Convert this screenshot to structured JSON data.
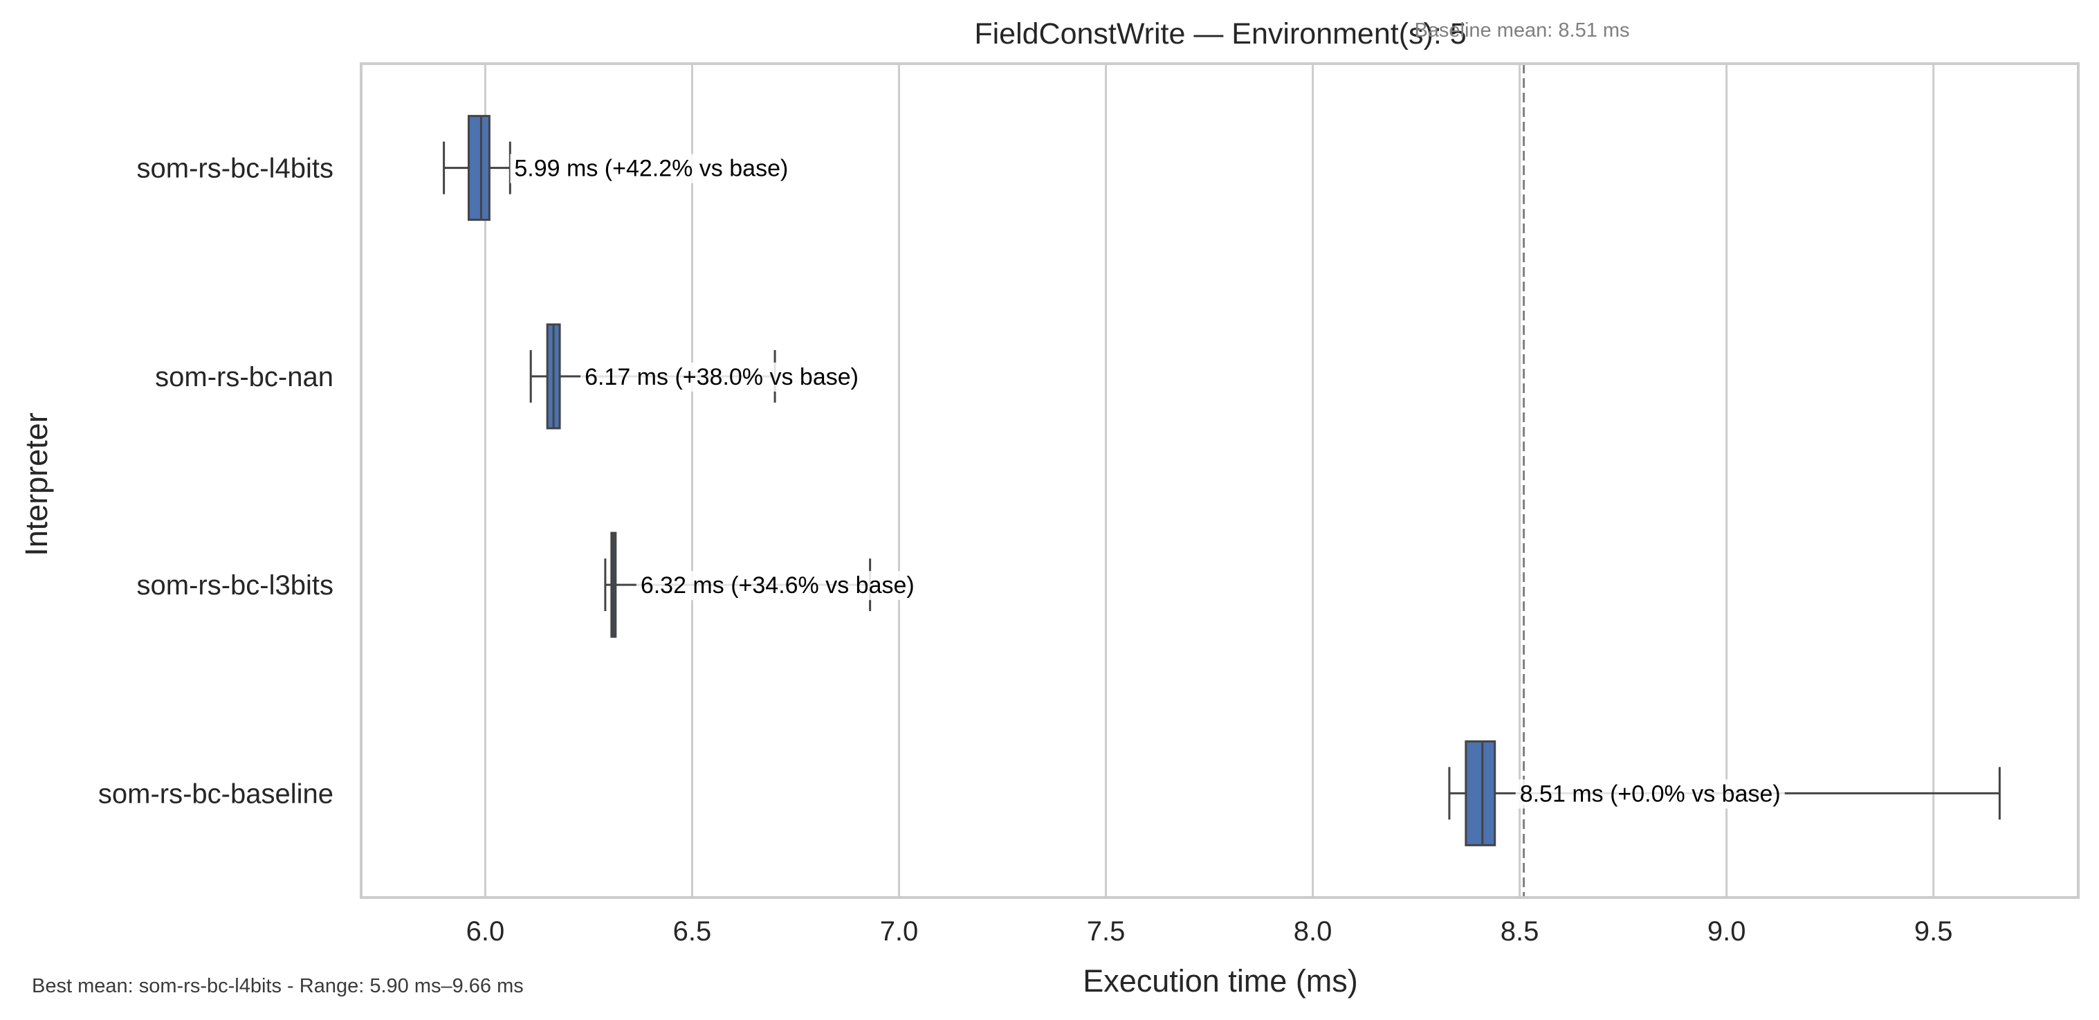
{
  "chart_data": {
    "type": "box",
    "orientation": "horizontal",
    "title": "FieldConstWrite — Environment(s): 5",
    "xlabel": "Execution time (ms)",
    "ylabel": "Interpreter",
    "xlim": [
      5.7,
      9.85
    ],
    "xticks": [
      6.0,
      6.5,
      7.0,
      7.5,
      8.0,
      8.5,
      9.0,
      9.5
    ],
    "xtick_labels": [
      "6.0",
      "6.5",
      "7.0",
      "7.5",
      "8.0",
      "8.5",
      "9.0",
      "9.5"
    ],
    "grid": "vertical",
    "categories": [
      "som-rs-bc-l4bits",
      "som-rs-bc-nan",
      "som-rs-bc-l3bits",
      "som-rs-bc-baseline"
    ],
    "boxes": [
      {
        "category": "som-rs-bc-l4bits",
        "whisker_low": 5.9,
        "q1": 5.96,
        "median": 5.99,
        "q3": 6.01,
        "whisker_high": 6.06,
        "color": "#4c72b0",
        "annotation": "5.99 ms  (+42.2% vs base)"
      },
      {
        "category": "som-rs-bc-nan",
        "whisker_low": 6.11,
        "q1": 6.15,
        "median": 6.165,
        "q3": 6.18,
        "whisker_high": 6.7,
        "color": "#4c72b0",
        "annotation": "6.17 ms  (+38.0% vs base)"
      },
      {
        "category": "som-rs-bc-l3bits",
        "whisker_low": 6.29,
        "q1": 6.305,
        "median": 6.31,
        "q3": 6.315,
        "whisker_high": 6.93,
        "color": "#4c72b0",
        "annotation": "6.32 ms  (+34.6% vs base)"
      },
      {
        "category": "som-rs-bc-baseline",
        "whisker_low": 8.33,
        "q1": 8.37,
        "median": 8.41,
        "q3": 8.44,
        "whisker_high": 9.66,
        "color": "#4c72b0",
        "annotation": "8.51 ms  (+0.0% vs base)"
      }
    ],
    "reference_line": {
      "x": 8.51,
      "style": "dashed",
      "color": "#808080",
      "label": "Baseline mean: 8.51 ms"
    },
    "footnote": "Best mean: som-rs-bc-l4bits - Range: 5.90 ms–9.66 ms"
  }
}
